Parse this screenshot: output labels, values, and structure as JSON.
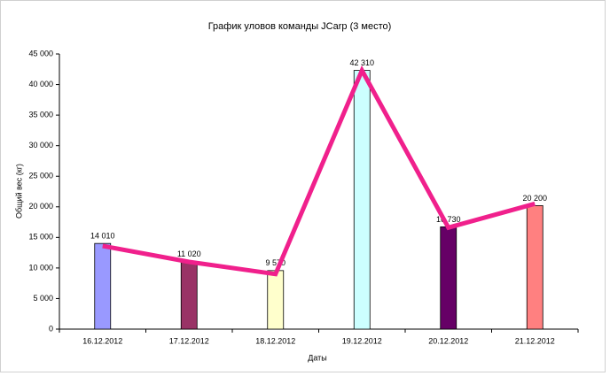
{
  "chart_data": {
    "type": "bar",
    "title": "График уловов команды JCarp (3 место)",
    "x_label": "Даты",
    "y_label": "Общий вес (кг)",
    "categories": [
      "16.12.2012",
      "17.12.2012",
      "18.12.2012",
      "19.12.2012",
      "20.12.2012",
      "21.12.2012"
    ],
    "series": [
      {
        "type": "bar",
        "colors": [
          "#9999ff",
          "#993366",
          "#ffffcc",
          "#ccffff",
          "#660066",
          "#ff8080"
        ],
        "values": [
          14010,
          11020,
          9570,
          42310,
          16730,
          20200
        ],
        "value_labels": [
          "14 010",
          "11 020",
          "9 570",
          "42 310",
          "16 730",
          "20 200"
        ]
      },
      {
        "type": "line",
        "color": "#f0208c",
        "values": [
          13600,
          11000,
          9000,
          42300,
          16600,
          20500
        ]
      }
    ],
    "ylim": [
      0,
      45000
    ],
    "yticks": [
      0,
      {
        "value": 5000,
        "label": "5 000"
      },
      {
        "value": 10000,
        "label": "10 000"
      },
      {
        "value": 15000,
        "label": "15 000"
      },
      {
        "value": 20000,
        "label": "20 000"
      },
      {
        "value": 25000,
        "label": "25 000"
      },
      {
        "value": 30000,
        "label": "30 000"
      },
      {
        "value": 35000,
        "label": "35 000"
      },
      {
        "value": 40000,
        "label": "40 000"
      },
      {
        "value": 45000,
        "label": "45 000"
      }
    ]
  }
}
